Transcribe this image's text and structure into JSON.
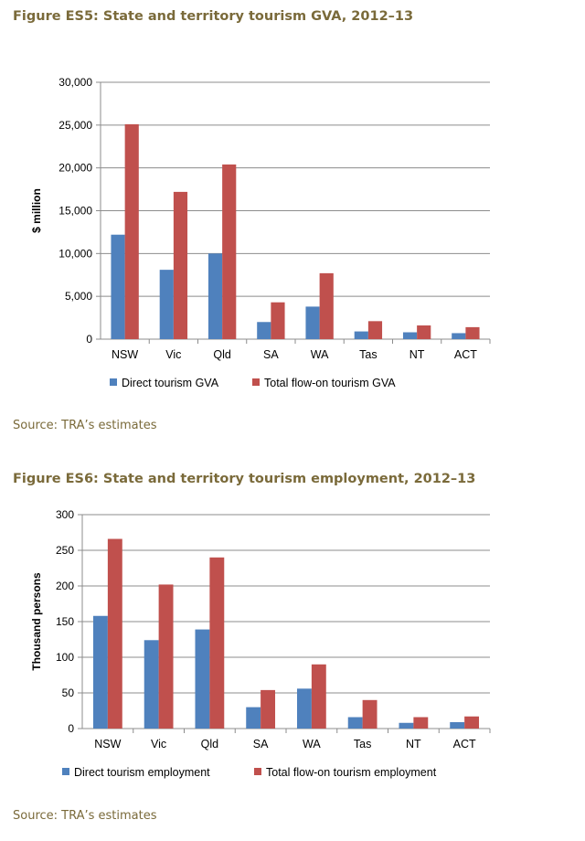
{
  "figures": [
    {
      "title": "Figure ES5: State and territory tourism GVA, 2012–13",
      "source": "Source: TRA’s estimates"
    },
    {
      "title": "Figure ES6: State and territory tourism employment, 2012–13",
      "source": "Source: TRA’s estimates"
    }
  ],
  "chart_data": [
    {
      "type": "bar",
      "categories": [
        "NSW",
        "Vic",
        "Qld",
        "SA",
        "WA",
        "Tas",
        "NT",
        "ACT"
      ],
      "series": [
        {
          "name": "Direct tourism GVA",
          "color": "#4f81bd",
          "values": [
            12200,
            8100,
            10000,
            2000,
            3800,
            900,
            800,
            700
          ]
        },
        {
          "name": "Total flow-on tourism GVA",
          "color": "#c0504d",
          "values": [
            25100,
            17200,
            20400,
            4300,
            7700,
            2100,
            1600,
            1400
          ]
        }
      ],
      "ylabel": "$ million",
      "ylim": [
        0,
        30000
      ],
      "yticks": [
        0,
        5000,
        10000,
        15000,
        20000,
        25000,
        30000
      ],
      "ytick_labels": [
        "0",
        "5,000",
        "10,000",
        "15,000",
        "20,000",
        "25,000",
        "30,000"
      ],
      "grid": true,
      "legend": "bottom"
    },
    {
      "type": "bar",
      "categories": [
        "NSW",
        "Vic",
        "Qld",
        "SA",
        "WA",
        "Tas",
        "NT",
        "ACT"
      ],
      "series": [
        {
          "name": "Direct tourism employment",
          "color": "#4f81bd",
          "values": [
            158,
            124,
            139,
            30,
            56,
            16,
            8,
            9
          ]
        },
        {
          "name": "Total flow-on tourism employment",
          "color": "#c0504d",
          "values": [
            266,
            202,
            240,
            54,
            90,
            40,
            16,
            17
          ]
        }
      ],
      "ylabel": "Thousand persons",
      "ylim": [
        0,
        300
      ],
      "yticks": [
        0,
        50,
        100,
        150,
        200,
        250,
        300
      ],
      "ytick_labels": [
        "0",
        "50",
        "100",
        "150",
        "200",
        "250",
        "300"
      ],
      "grid": true,
      "legend": "bottom"
    }
  ]
}
